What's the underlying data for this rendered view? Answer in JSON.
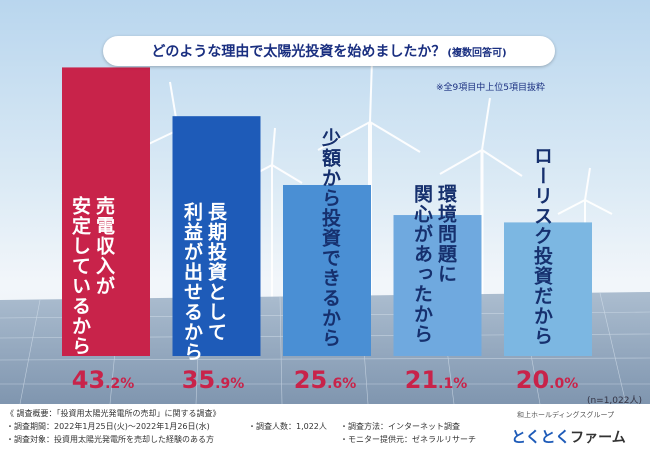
{
  "header": {
    "title": "どのような理由で太陽光投資を始めましたか？",
    "title_sub": "(複数回答可)",
    "note": "※全9項目中上位5項目抜粋"
  },
  "chart_data": {
    "type": "bar",
    "title": "どのような理由で太陽光投資を始めましたか？(複数回答可)",
    "categories": [
      "売電収入が安定しているから",
      "長期投資として利益が出せるから",
      "少額から投資できるから",
      "環境問題に関心があったから",
      "ローリスク投資だから"
    ],
    "values": [
      43.2,
      35.9,
      25.6,
      21.1,
      20.0
    ],
    "value_labels": [
      {
        "int": "43",
        "dec": ".2",
        "pct": "%"
      },
      {
        "int": "35",
        "dec": ".9",
        "pct": "%"
      },
      {
        "int": "25",
        "dec": ".6",
        "pct": "%"
      },
      {
        "int": "21",
        "dec": ".1",
        "pct": "%"
      },
      {
        "int": "20",
        "dec": ".0",
        "pct": "%"
      }
    ],
    "bar_text": [
      "売電収入が\n安定しているから",
      "長期投資として\n利益が出せるから",
      "少額から投資できるから",
      "環境問題に\n関心があったから",
      "ローリスク投資だから"
    ],
    "colors": [
      "#c8234a",
      "#1e5bb8",
      "#4a8fd4",
      "#6fa9df",
      "#7cb7e2"
    ],
    "ylim": [
      0,
      50
    ],
    "sample_size": "(n=1,022人)"
  },
  "footer": {
    "survey_title": "《 調査概要：「投資用太陽光発電所の売却」に関する調査》",
    "period": "・調査期間：2022年1月25日(火)～2022年1月26日(水)",
    "target": "・調査対象：投資用太陽光発電所を売却した経験のある方",
    "count": "・調査人数：1,022人",
    "method": "・調査方法：インターネット調査",
    "provider": "・モニター提供元：ゼネラルリサーチ"
  },
  "logo": {
    "group": "和上ホールディングスグループ",
    "name_a": "とくとく",
    "name_b": "ファーム"
  }
}
